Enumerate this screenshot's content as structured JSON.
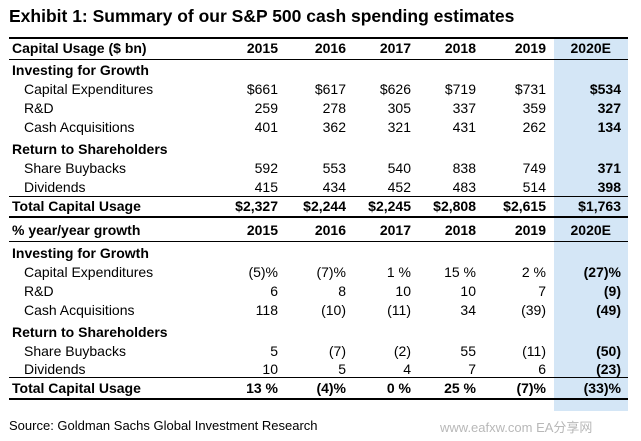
{
  "title": "Exhibit 1: Summary of our S&P 500 cash spending estimates",
  "table1": {
    "header": [
      "Capital Usage ($ bn)",
      "2015",
      "2016",
      "2017",
      "2018",
      "2019",
      "2020E"
    ],
    "sections": [
      {
        "name": "Investing for Growth",
        "rows": [
          {
            "label": "Capital Expenditures",
            "values": [
              "$661",
              "$617",
              "$626",
              "$719",
              "$731",
              "$534"
            ]
          },
          {
            "label": "R&D",
            "values": [
              "259",
              "278",
              "305",
              "337",
              "359",
              "327"
            ]
          },
          {
            "label": "Cash Acquisitions",
            "values": [
              "401",
              "362",
              "321",
              "431",
              "262",
              "134"
            ]
          }
        ]
      },
      {
        "name": "Return to Shareholders",
        "rows": [
          {
            "label": "Share Buybacks",
            "values": [
              "592",
              "553",
              "540",
              "838",
              "749",
              "371"
            ]
          },
          {
            "label": "Dividends",
            "values": [
              "415",
              "434",
              "452",
              "483",
              "514",
              "398"
            ]
          }
        ]
      }
    ],
    "total": {
      "label": "Total Capital Usage",
      "values": [
        "$2,327",
        "$2,244",
        "$2,245",
        "$2,808",
        "$2,615",
        "$1,763"
      ]
    }
  },
  "table2": {
    "header": [
      "% year/year growth",
      "2015",
      "2016",
      "2017",
      "2018",
      "2019",
      "2020E"
    ],
    "sections": [
      {
        "name": "Investing for Growth",
        "rows": [
          {
            "label": "Capital Expenditures",
            "values": [
              "(5)%",
              "(7)%",
              "1 %",
              "15 %",
              "2 %",
              "(27)%"
            ]
          },
          {
            "label": "R&D",
            "values": [
              "6",
              "8",
              "10",
              "10",
              "7",
              "(9)"
            ]
          },
          {
            "label": "Cash Acquisitions",
            "values": [
              "118",
              "(10)",
              "(11)",
              "34",
              "(39)",
              "(49)"
            ]
          }
        ]
      },
      {
        "name": "Return to Shareholders",
        "rows": [
          {
            "label": "Share Buybacks",
            "values": [
              "5",
              "(7)",
              "(2)",
              "55",
              "(11)",
              "(50)"
            ]
          },
          {
            "label": "Dividends",
            "values": [
              "10",
              "5",
              "4",
              "7",
              "6",
              "(23)"
            ]
          }
        ]
      }
    ],
    "total": {
      "label": "Total Capital Usage",
      "values": [
        "13 %",
        "(4)%",
        "0 %",
        "25 %",
        "(7)%",
        "(33)%"
      ]
    }
  },
  "source": "Source: Goldman Sachs Global Investment Research",
  "watermark": "www.eafxw.com EA分享网",
  "colors": {
    "highlight": "#d4e6f6",
    "text": "#000000",
    "watermark": "#b8b8b8"
  }
}
